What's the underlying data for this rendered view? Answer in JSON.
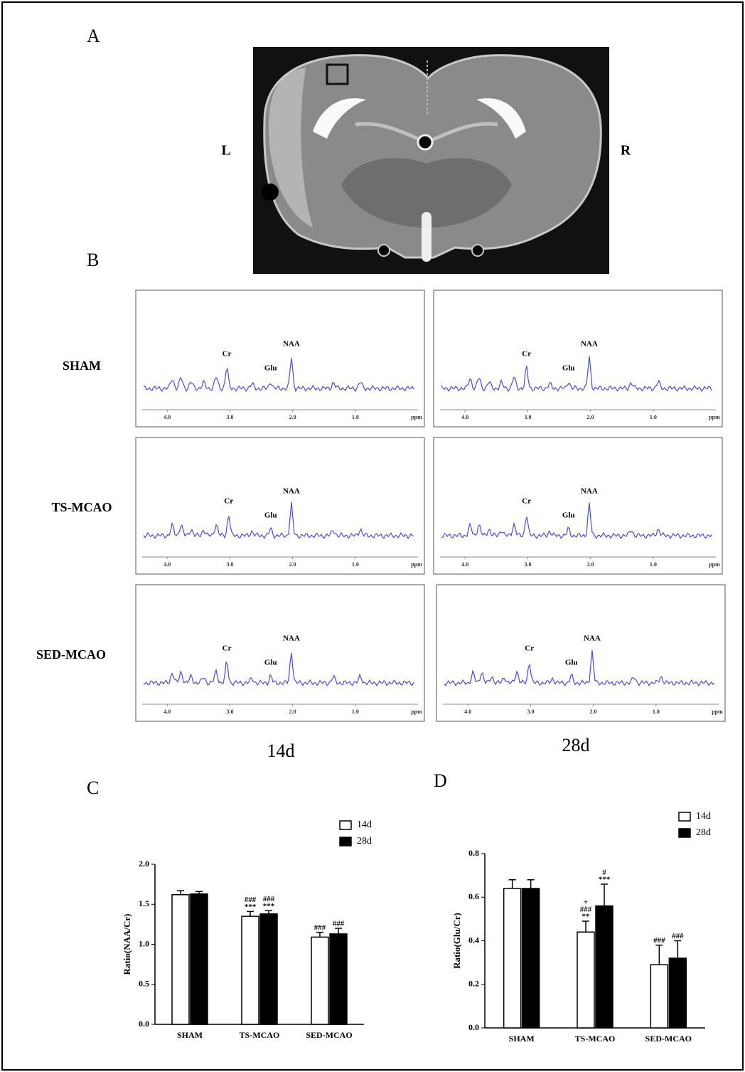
{
  "panel_labels": [
    "A",
    "B",
    "C",
    "D"
  ],
  "mri": {
    "left": "L",
    "right": "R"
  },
  "row_labels": [
    "SHAM",
    "TS-MCAO",
    "SED-MCAO"
  ],
  "column_labels": [
    "14d",
    "28d"
  ],
  "chart_data": [
    {
      "type": "spectrum",
      "xlim": [
        4.4,
        0.0
      ],
      "x_label": "ppm",
      "xticks": [
        {
          "value": 4,
          "label": "4.0"
        },
        {
          "value": 3,
          "label": "3.0"
        },
        {
          "value": 2,
          "label": "2.0"
        },
        {
          "value": 1,
          "label": "1.0"
        }
      ],
      "peaks": [
        {
          "label": "Cr",
          "x": 3.05
        },
        {
          "label": "Glu",
          "x": 2.35
        },
        {
          "label": "NAA",
          "x": 2.02
        }
      ]
    },
    {
      "type": "spectrum",
      "xlim": [
        4.4,
        0.0
      ],
      "x_label": "ppm",
      "xticks": [
        {
          "value": 4,
          "label": "4.0"
        },
        {
          "value": 3,
          "label": "3.0"
        },
        {
          "value": 2,
          "label": "2.0"
        },
        {
          "value": 1,
          "label": "1.0"
        }
      ],
      "peaks": [
        {
          "label": "Cr",
          "x": 3.02
        },
        {
          "label": "Glu",
          "x": 2.35
        },
        {
          "label": "NAA",
          "x": 2.02
        }
      ]
    },
    {
      "type": "spectrum",
      "xlim": [
        4.4,
        0.0
      ],
      "x_label": "ppm",
      "xticks": [
        {
          "value": 4,
          "label": "4.0"
        },
        {
          "value": 3,
          "label": "3.0"
        },
        {
          "value": 2,
          "label": "2.0"
        },
        {
          "value": 1,
          "label": "1.0"
        }
      ],
      "peaks": [
        {
          "label": "Cr",
          "x": 3.02
        },
        {
          "label": "Glu",
          "x": 2.35
        },
        {
          "label": "NAA",
          "x": 2.02
        }
      ]
    },
    {
      "type": "spectrum",
      "xlim": [
        4.4,
        0.0
      ],
      "x_label": "ppm",
      "xticks": [
        {
          "value": 4,
          "label": "4.0"
        },
        {
          "value": 3,
          "label": "3.0"
        },
        {
          "value": 2,
          "label": "2.0"
        },
        {
          "value": 1,
          "label": "1.0"
        }
      ],
      "peaks": [
        {
          "label": "Cr",
          "x": 3.02
        },
        {
          "label": "Glu",
          "x": 2.35
        },
        {
          "label": "NAA",
          "x": 2.02
        }
      ]
    },
    {
      "type": "spectrum",
      "xlim": [
        4.4,
        0.0
      ],
      "x_label": "ppm",
      "xticks": [
        {
          "value": 4,
          "label": "4.0"
        },
        {
          "value": 3,
          "label": "3.0"
        },
        {
          "value": 2,
          "label": "2.0"
        },
        {
          "value": 1,
          "label": "1.0"
        }
      ],
      "peaks": [
        {
          "label": "Cr",
          "x": 3.05
        },
        {
          "label": "Glu",
          "x": 2.35
        },
        {
          "label": "NAA",
          "x": 2.02
        }
      ]
    },
    {
      "type": "spectrum",
      "xlim": [
        4.4,
        0.0
      ],
      "x_label": "ppm",
      "xticks": [
        {
          "value": 4,
          "label": "4.0"
        },
        {
          "value": 3,
          "label": "3.0"
        },
        {
          "value": 2,
          "label": "2.0"
        },
        {
          "value": 1,
          "label": "1.0"
        }
      ],
      "peaks": [
        {
          "label": "Cr",
          "x": 3.02
        },
        {
          "label": "Glu",
          "x": 2.35
        },
        {
          "label": "NAA",
          "x": 2.02
        }
      ]
    },
    {
      "type": "bar",
      "ylabel": "Ratio(NAA/Cr)",
      "categories": [
        "SHAM",
        "TS-MCAO",
        "SED-MCAO"
      ],
      "ylim": [
        0,
        2.0
      ],
      "yticks": [
        {
          "value": 0,
          "label": "0.0"
        },
        {
          "value": 0.5,
          "label": "0.5"
        },
        {
          "value": 1,
          "label": "1.0"
        },
        {
          "value": 1.5,
          "label": "1.5"
        },
        {
          "value": 2,
          "label": "2.0"
        }
      ],
      "series": [
        {
          "name": "14d",
          "color": "#ffffff",
          "values": [
            1.62,
            1.35,
            1.09
          ],
          "errors": [
            0.05,
            0.06,
            0.06
          ],
          "annotations": [
            [],
            [
              "###",
              "***"
            ],
            [
              "###"
            ]
          ]
        },
        {
          "name": "28d",
          "color": "#000000",
          "values": [
            1.63,
            1.38,
            1.13
          ],
          "errors": [
            0.03,
            0.04,
            0.07
          ],
          "annotations": [
            [],
            [
              "###",
              "***"
            ],
            [
              "###"
            ]
          ]
        }
      ]
    },
    {
      "type": "bar",
      "ylabel": "Ratio(Glu/Cr)",
      "categories": [
        "SHAM",
        "TS-MCAO",
        "SED-MCAO"
      ],
      "ylim": [
        0,
        0.8
      ],
      "yticks": [
        {
          "value": 0,
          "label": "0.0"
        },
        {
          "value": 0.2,
          "label": "0.2"
        },
        {
          "value": 0.4,
          "label": "0.4"
        },
        {
          "value": 0.6,
          "label": "0.6"
        },
        {
          "value": 0.8,
          "label": "0.8"
        }
      ],
      "series": [
        {
          "name": "14d",
          "color": "#ffffff",
          "values": [
            0.64,
            0.44,
            0.29
          ],
          "errors": [
            0.04,
            0.05,
            0.09
          ],
          "annotations": [
            [],
            [
              "+",
              "###",
              "**"
            ],
            [
              "###"
            ]
          ]
        },
        {
          "name": "28d",
          "color": "#000000",
          "values": [
            0.64,
            0.56,
            0.32
          ],
          "errors": [
            0.04,
            0.1,
            0.08
          ],
          "annotations": [
            [],
            [
              "#",
              "***"
            ],
            [
              "###"
            ]
          ]
        }
      ]
    }
  ]
}
